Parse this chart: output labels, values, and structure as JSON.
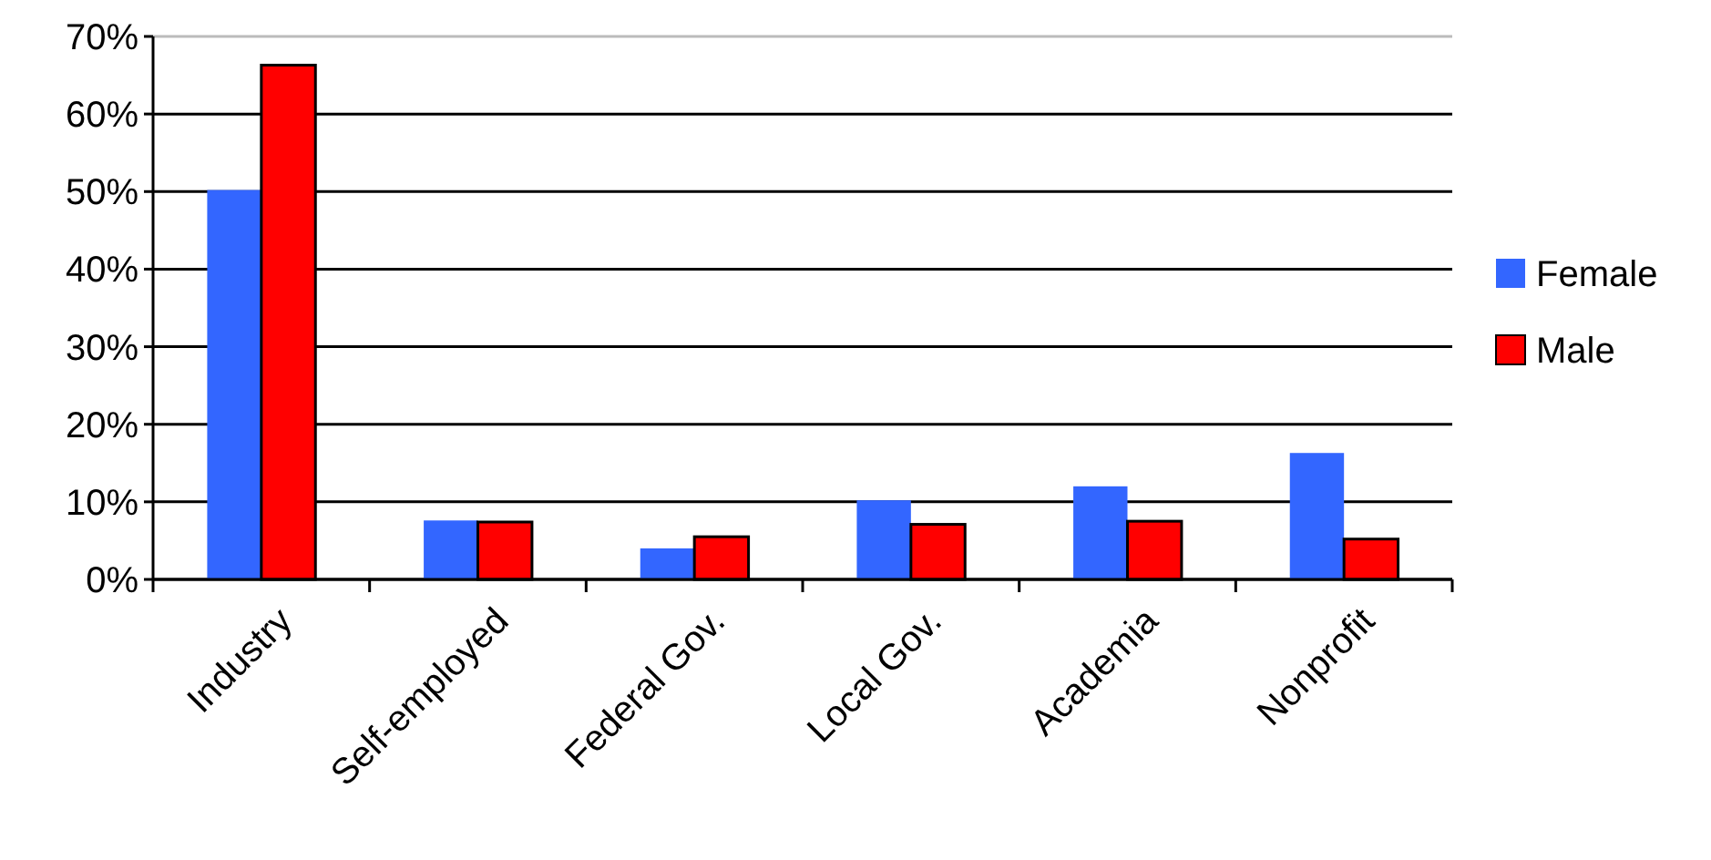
{
  "chart_data": {
    "type": "bar",
    "categories": [
      "Industry",
      "Self-employed",
      "Federal Gov.",
      "Local Gov.",
      "Academia",
      "Nonprofit"
    ],
    "series": [
      {
        "name": "Female",
        "color": "#3366ff",
        "values": [
          50.2,
          7.6,
          4.0,
          10.2,
          12.0,
          16.3
        ]
      },
      {
        "name": "Male",
        "color": "#ff0000",
        "values": [
          66.3,
          7.4,
          5.5,
          7.1,
          7.5,
          5.2
        ]
      }
    ],
    "ylim": [
      0,
      70
    ],
    "yticks": [
      {
        "value": 0,
        "label": "0%"
      },
      {
        "value": 10,
        "label": "10%"
      },
      {
        "value": 20,
        "label": "20%"
      },
      {
        "value": 30,
        "label": "30%"
      },
      {
        "value": 40,
        "label": "40%"
      },
      {
        "value": 50,
        "label": "50%"
      },
      {
        "value": 60,
        "label": "60%"
      },
      {
        "value": 70,
        "label": "70%"
      }
    ],
    "grid": "y",
    "legend": "right"
  }
}
